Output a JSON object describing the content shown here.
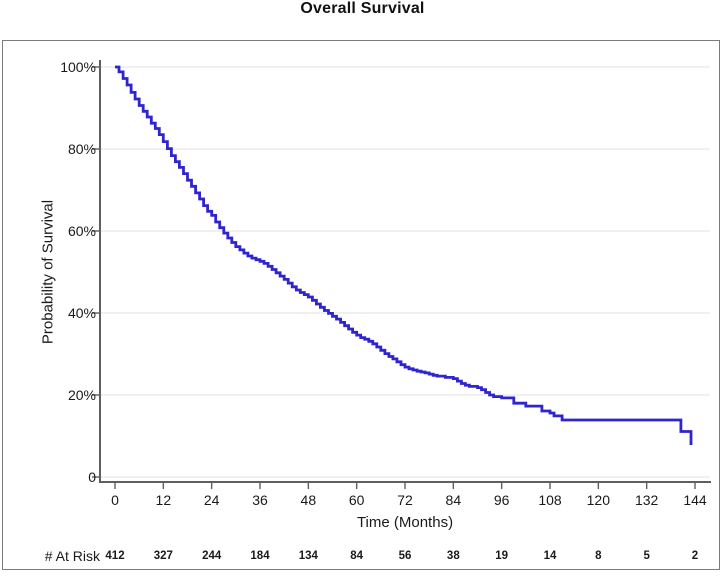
{
  "colors": {
    "curve": "#2f25cc",
    "grid": "#e7e7e7",
    "axis": "#5f5f5f",
    "frame": "#7b7b7b",
    "text": "#1a1a1a"
  },
  "chart_data": {
    "type": "line",
    "subtype": "kaplan-meier-step",
    "title": "Overall Survival",
    "xlabel": "Time (Months)",
    "ylabel": "Probability of Survival",
    "xlim": [
      0,
      144
    ],
    "ylim": [
      0,
      100
    ],
    "grid": true,
    "legend": false,
    "x_ticks": [
      0,
      12,
      24,
      36,
      48,
      60,
      72,
      84,
      96,
      108,
      120,
      132,
      144
    ],
    "y_ticks": [
      {
        "value": 100,
        "label": "100%"
      },
      {
        "value": 80,
        "label": "80%"
      },
      {
        "value": 60,
        "label": "60%"
      },
      {
        "value": 40,
        "label": "40%"
      },
      {
        "value": 20,
        "label": "20%"
      },
      {
        "value": 0,
        "label": "0"
      }
    ],
    "series": [
      {
        "name": "Overall Survival",
        "color": "#2f25cc",
        "units": {
          "x": "months",
          "y": "percent surviving"
        },
        "step_points": [
          [
            0,
            100
          ],
          [
            1,
            98.8
          ],
          [
            2,
            97.2
          ],
          [
            3,
            95.6
          ],
          [
            4,
            93.8
          ],
          [
            5,
            92.2
          ],
          [
            6,
            90.6
          ],
          [
            7,
            89.2
          ],
          [
            8,
            87.8
          ],
          [
            9,
            86.3
          ],
          [
            10,
            85.0
          ],
          [
            11,
            83.5
          ],
          [
            12,
            81.8
          ],
          [
            13,
            80.1
          ],
          [
            14,
            78.4
          ],
          [
            15,
            76.9
          ],
          [
            16,
            75.5
          ],
          [
            17,
            74.0
          ],
          [
            18,
            72.4
          ],
          [
            19,
            70.9
          ],
          [
            20,
            69.3
          ],
          [
            21,
            67.8
          ],
          [
            22,
            66.2
          ],
          [
            23,
            64.8
          ],
          [
            24,
            63.8
          ],
          [
            25,
            62.2
          ],
          [
            26,
            60.8
          ],
          [
            27,
            59.5
          ],
          [
            28,
            58.3
          ],
          [
            29,
            57.2
          ],
          [
            30,
            56.2
          ],
          [
            31,
            55.4
          ],
          [
            32,
            54.6
          ],
          [
            33,
            53.9
          ],
          [
            34,
            53.4
          ],
          [
            35,
            53.0
          ],
          [
            36,
            52.6
          ],
          [
            37,
            52.1
          ],
          [
            38,
            51.4
          ],
          [
            39,
            50.6
          ],
          [
            40,
            49.8
          ],
          [
            41,
            49.0
          ],
          [
            42,
            48.2
          ],
          [
            43,
            47.3
          ],
          [
            44,
            46.4
          ],
          [
            45,
            45.6
          ],
          [
            46,
            45.0
          ],
          [
            47,
            44.5
          ],
          [
            48,
            43.9
          ],
          [
            49,
            43.1
          ],
          [
            50,
            42.2
          ],
          [
            51,
            41.4
          ],
          [
            52,
            40.6
          ],
          [
            53,
            39.9
          ],
          [
            54,
            39.2
          ],
          [
            55,
            38.5
          ],
          [
            56,
            37.7
          ],
          [
            57,
            36.9
          ],
          [
            58,
            36.1
          ],
          [
            59,
            35.3
          ],
          [
            60,
            34.6
          ],
          [
            61,
            34.0
          ],
          [
            62,
            33.6
          ],
          [
            63,
            33.1
          ],
          [
            64,
            32.5
          ],
          [
            65,
            31.7
          ],
          [
            66,
            30.9
          ],
          [
            67,
            30.1
          ],
          [
            68,
            29.4
          ],
          [
            69,
            28.8
          ],
          [
            70,
            28.1
          ],
          [
            71,
            27.4
          ],
          [
            72,
            26.8
          ],
          [
            73,
            26.4
          ],
          [
            74,
            26.1
          ],
          [
            75,
            25.8
          ],
          [
            76,
            25.6
          ],
          [
            77,
            25.4
          ],
          [
            78,
            25.1
          ],
          [
            79,
            24.8
          ],
          [
            80,
            24.6
          ],
          [
            82,
            24.3
          ],
          [
            84,
            24.0
          ],
          [
            85,
            23.4
          ],
          [
            86,
            22.8
          ],
          [
            87,
            22.4
          ],
          [
            88,
            22.1
          ],
          [
            90,
            21.8
          ],
          [
            91,
            21.3
          ],
          [
            92,
            20.6
          ],
          [
            93,
            20.0
          ],
          [
            94,
            19.6
          ],
          [
            96,
            19.3
          ],
          [
            99,
            18.0
          ],
          [
            102,
            17.3
          ],
          [
            106,
            16.1
          ],
          [
            108,
            15.6
          ],
          [
            109,
            14.9
          ],
          [
            111,
            13.9
          ],
          [
            140.5,
            11.1
          ],
          [
            143,
            7.8
          ]
        ]
      }
    ],
    "at_risk": {
      "label": "# At Risk",
      "times": [
        0,
        12,
        24,
        36,
        48,
        60,
        72,
        84,
        96,
        108,
        120,
        132,
        144
      ],
      "counts": [
        412,
        327,
        244,
        184,
        134,
        84,
        56,
        38,
        19,
        14,
        8,
        5,
        2
      ]
    }
  }
}
